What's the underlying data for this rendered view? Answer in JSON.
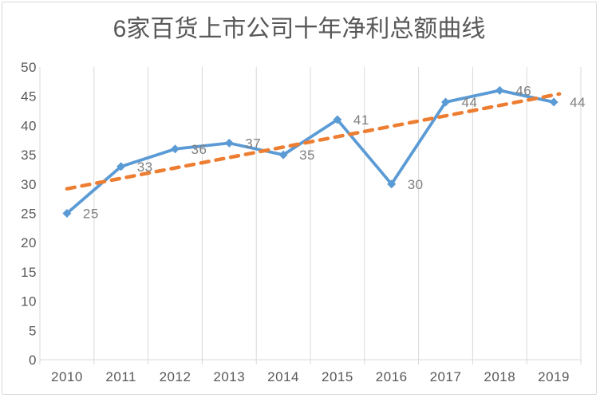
{
  "chart_data": {
    "type": "line",
    "title": "6家百货上市公司十年净利总额曲线",
    "categories": [
      "2010",
      "2011",
      "2012",
      "2013",
      "2014",
      "2015",
      "2016",
      "2017",
      "2018",
      "2019"
    ],
    "series": [
      {
        "role": "data",
        "type": "line",
        "values": [
          25,
          33,
          36,
          37,
          35,
          41,
          30,
          44,
          46,
          44
        ],
        "color": "#5B9BD5",
        "marker": "diamond",
        "line_style": "solid",
        "data_labels": true
      },
      {
        "role": "trendline",
        "type": "linear-trend",
        "start_value": 29.2,
        "end_value": 45.4,
        "color": "#ED7D31",
        "line_style": "dashed"
      }
    ],
    "xlabel": "",
    "ylabel": "",
    "ylim": [
      0,
      50
    ],
    "ytick_step": 5,
    "gridlines": "vertical",
    "legend": "none",
    "colors": {
      "title": "#595959",
      "axis_label": "#595959",
      "data_label": "#7F7F7F",
      "gridline": "#D9D9D9",
      "axis_line": "#D9D9D9",
      "border": "#D9D9D9",
      "background": "#FFFFFF"
    }
  }
}
